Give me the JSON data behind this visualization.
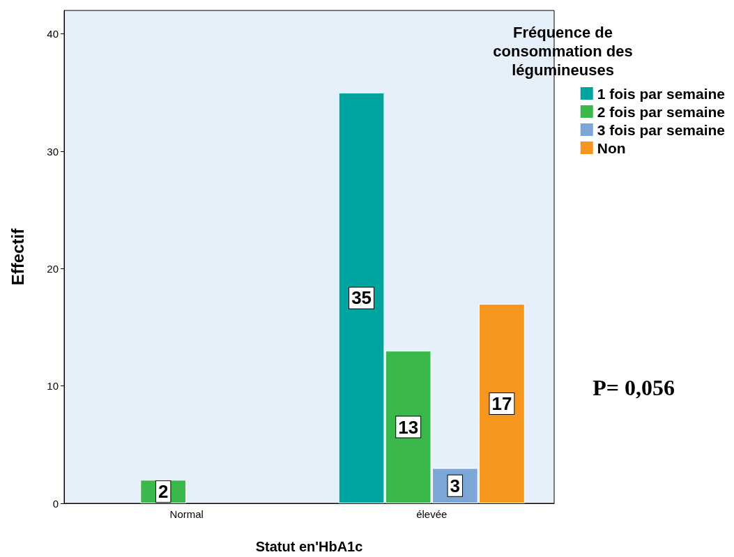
{
  "chart_data": {
    "type": "bar",
    "xlabel": "Statut en'HbA1c",
    "ylabel": "Effectif",
    "legend_title": "Fréquence de consommation des légumineuses",
    "categories": [
      "Normal",
      "élevée"
    ],
    "series": [
      {
        "name": "1 fois par semaine",
        "color": "#00a5a0",
        "values": [
          null,
          35
        ]
      },
      {
        "name": "2 fois par semaine",
        "color": "#3bb84b",
        "values": [
          2,
          13
        ]
      },
      {
        "name": "3 fois par semaine",
        "color": "#7ba6d6",
        "values": [
          null,
          3
        ]
      },
      {
        "name": "Non",
        "color": "#f7961f",
        "values": [
          null,
          17
        ]
      }
    ],
    "ylim": [
      0,
      42
    ],
    "yticks": [
      0,
      10,
      20,
      30,
      40
    ],
    "grid": false,
    "legend": "top right",
    "data_labels": true,
    "annotations": [
      "P= 0,056"
    ]
  }
}
